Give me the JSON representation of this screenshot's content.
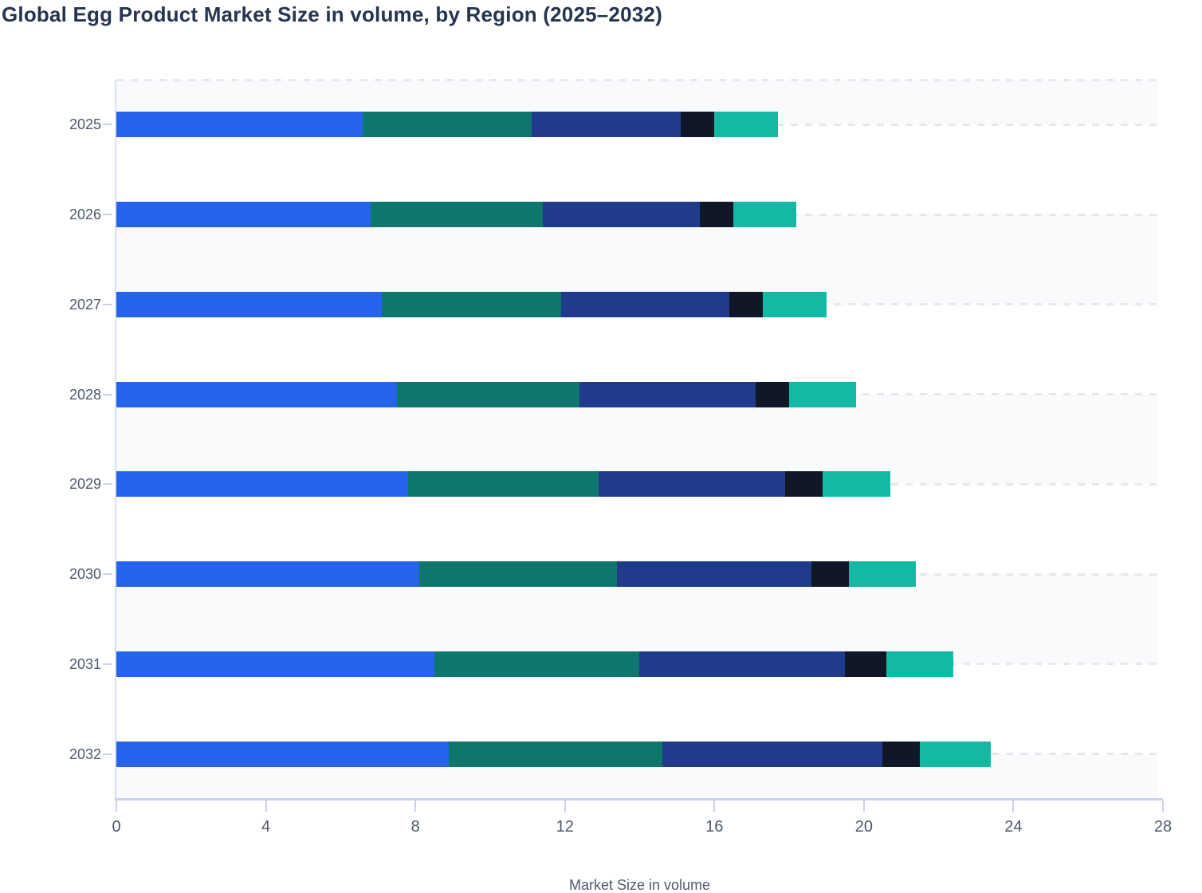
{
  "chart_data": {
    "type": "bar",
    "orientation": "horizontal",
    "stacked": true,
    "title": "Global Egg Product Market Size in volume, by Region (2025–2032)",
    "xlabel": "Market Size in volume",
    "ylabel": "",
    "categories": [
      "2025",
      "2026",
      "2027",
      "2028",
      "2029",
      "2030",
      "2031",
      "2032"
    ],
    "series": [
      {
        "name": "segment-blue",
        "color": "#2563eb",
        "values": [
          6.6,
          6.8,
          7.1,
          7.5,
          7.8,
          8.1,
          8.5,
          8.9
        ]
      },
      {
        "name": "segment-dark-teal",
        "color": "#0f766e",
        "values": [
          4.5,
          4.6,
          4.8,
          4.9,
          5.1,
          5.3,
          5.5,
          5.7
        ]
      },
      {
        "name": "segment-navy",
        "color": "#203b8c",
        "values": [
          4.0,
          4.2,
          4.5,
          4.7,
          5.0,
          5.2,
          5.5,
          5.9
        ]
      },
      {
        "name": "segment-dark-navy",
        "color": "#101828",
        "values": [
          0.9,
          0.9,
          0.9,
          0.9,
          1.0,
          1.0,
          1.1,
          1.0
        ]
      },
      {
        "name": "segment-turquoise",
        "color": "#15b8a5",
        "values": [
          1.7,
          1.7,
          1.7,
          1.8,
          1.8,
          1.8,
          1.8,
          1.9
        ]
      }
    ],
    "totals": [
      17.7,
      18.2,
      19.0,
      19.8,
      20.7,
      21.4,
      22.4,
      23.4
    ],
    "xlim": [
      0,
      28
    ],
    "xticks": [
      0,
      4,
      8,
      12,
      16,
      20,
      24,
      28
    ],
    "legend": "none",
    "grid": {
      "horizontal_gridlines": "dashed, one per category",
      "top_border": "dashed",
      "alternating_bands": true,
      "band_color": "#f8fafc",
      "dash_color": "#e6e8ee",
      "axis_line_color": "#c9d2ea"
    }
  }
}
